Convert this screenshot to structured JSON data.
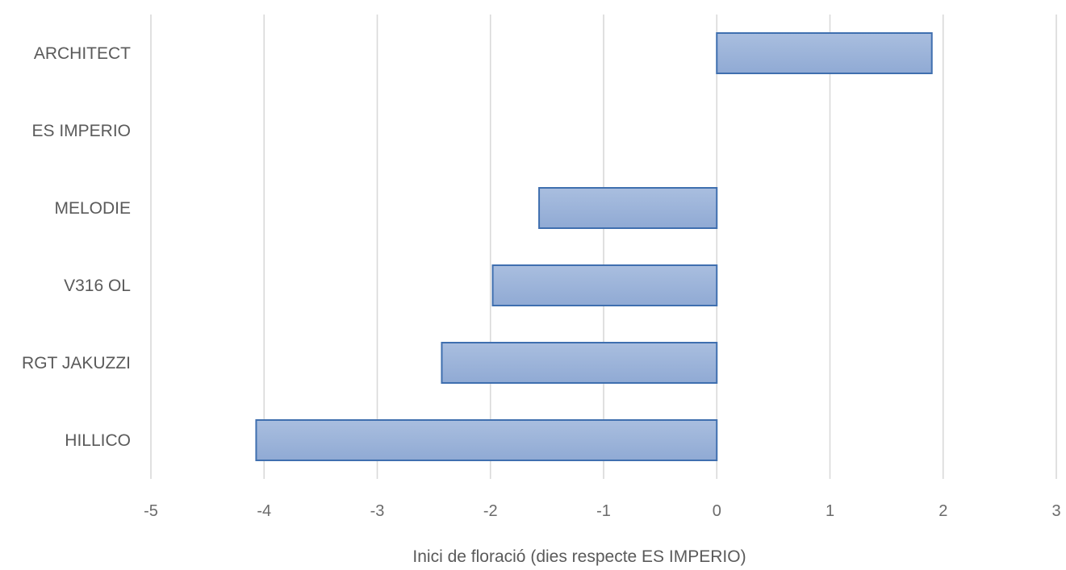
{
  "chart_data": {
    "type": "bar",
    "orientation": "horizontal",
    "categories": [
      "ARCHITECT",
      "ES IMPERIO",
      "MELODIE",
      "V316 OL",
      "RGT JAKUZZI",
      "HILLICO"
    ],
    "values": [
      1.9,
      0,
      -1.57,
      -1.98,
      -2.43,
      -4.07
    ],
    "xlabel": "Inici de floració (dies respecte ES IMPERIO)",
    "ylabel": "",
    "xlim": [
      -5,
      3
    ],
    "xticks": [
      -5,
      -4,
      -3,
      -2,
      -1,
      0,
      1,
      2,
      3
    ],
    "xtick_labels": [
      "-5",
      "-4",
      "-3",
      "-2",
      "-1",
      "0",
      "1",
      "2",
      "3"
    ],
    "grid": true,
    "legend": "none",
    "colors": {
      "bar_fill_top": "#a9bedf",
      "bar_fill_bottom": "#90aad4",
      "bar_stroke": "#3f6faf",
      "grid": "#d9d9d9",
      "text": "#5a5a5a"
    }
  }
}
